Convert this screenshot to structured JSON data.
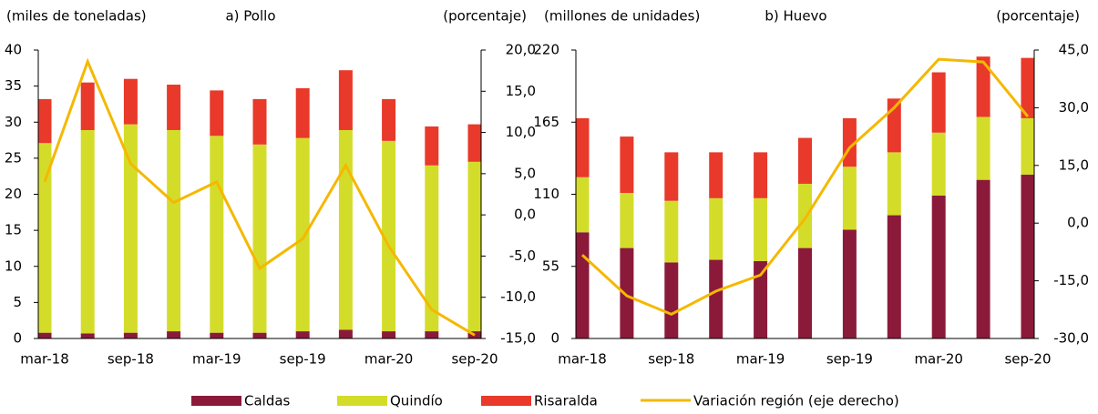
{
  "chart_data": [
    {
      "type": "bar",
      "stacked": true,
      "title": "a) Pollo",
      "ylabel": "(miles de toneladas)",
      "y2label": "(porcentaje)",
      "categories": [
        "mar-18",
        null,
        "sep-18",
        null,
        "mar-19",
        null,
        "sep-19",
        null,
        "mar-20",
        null,
        "sep-20"
      ],
      "ylim": [
        0,
        40
      ],
      "yticks": [
        0,
        5,
        10,
        15,
        20,
        25,
        30,
        35,
        40
      ],
      "y2lim": [
        -15,
        20
      ],
      "y2ticks": [
        {
          "value": -15,
          "label": "-15,0"
        },
        {
          "value": -10,
          "label": "-10,0"
        },
        {
          "value": -5,
          "label": "-5,0"
        },
        {
          "value": 0,
          "label": "0,0"
        },
        {
          "value": 5,
          "label": "5,0"
        },
        {
          "value": 10,
          "label": "10,0"
        },
        {
          "value": 15,
          "label": "15,0"
        },
        {
          "value": 20,
          "label": "20,0"
        }
      ],
      "series": [
        {
          "name": "Caldas",
          "color": "#8b1a3a",
          "values": [
            0.8,
            0.7,
            0.8,
            1.0,
            0.8,
            0.8,
            1.0,
            1.2,
            1.0,
            1.0,
            1.0
          ]
        },
        {
          "name": "Quindío",
          "color": "#d4dc2a",
          "values": [
            26.3,
            28.2,
            28.9,
            27.9,
            27.3,
            26.1,
            26.8,
            27.7,
            26.4,
            23.0,
            23.5
          ]
        },
        {
          "name": "Risaralda",
          "color": "#e8392a",
          "values": [
            6.1,
            6.6,
            6.3,
            6.3,
            6.3,
            6.3,
            6.9,
            8.3,
            5.8,
            5.4,
            5.2
          ]
        },
        {
          "name": "Variación región (eje derecho)",
          "color": "#f5b800",
          "type": "line",
          "axis": "y2",
          "values": [
            4.0,
            18.6,
            6.2,
            1.5,
            4.0,
            -6.5,
            -2.9,
            6.0,
            -3.8,
            -11.5,
            -14.6
          ]
        }
      ]
    },
    {
      "type": "bar",
      "stacked": true,
      "title": "b) Huevo",
      "ylabel": "(millones de unidades)",
      "y2label": "(porcentaje)",
      "categories": [
        "mar-18",
        null,
        "sep-18",
        null,
        "mar-19",
        null,
        "sep-19",
        null,
        "mar-20",
        null,
        "sep-20"
      ],
      "ylim": [
        0,
        220
      ],
      "yticks": [
        0,
        55,
        110,
        165,
        220
      ],
      "y2lim": [
        -30,
        45
      ],
      "y2ticks": [
        {
          "value": -30,
          "label": "-30,0"
        },
        {
          "value": -15,
          "label": "-15,0"
        },
        {
          "value": 0,
          "label": "0,0"
        },
        {
          "value": 15,
          "label": "15,0"
        },
        {
          "value": 30,
          "label": "30,0"
        },
        {
          "value": 45,
          "label": "45,0"
        }
      ],
      "series": [
        {
          "color": "#8b1a3a",
          "values": [
            81,
            69,
            58,
            60,
            59,
            69,
            83,
            94,
            109,
            121,
            125
          ]
        },
        {
          "color": "#d4dc2a",
          "values": [
            42,
            42,
            47,
            47,
            48,
            49,
            48,
            48,
            48,
            48,
            43
          ]
        },
        {
          "color": "#e8392a",
          "values": [
            45,
            43,
            37,
            35,
            35,
            35,
            37,
            41,
            46,
            46,
            46
          ]
        },
        {
          "color": "#f5b800",
          "type": "line",
          "axis": "y2",
          "values": [
            -8.3,
            -18.9,
            -23.7,
            -17.7,
            -13.5,
            1.2,
            19.6,
            30.0,
            42.6,
            41.9,
            27.7
          ]
        }
      ]
    }
  ]
}
